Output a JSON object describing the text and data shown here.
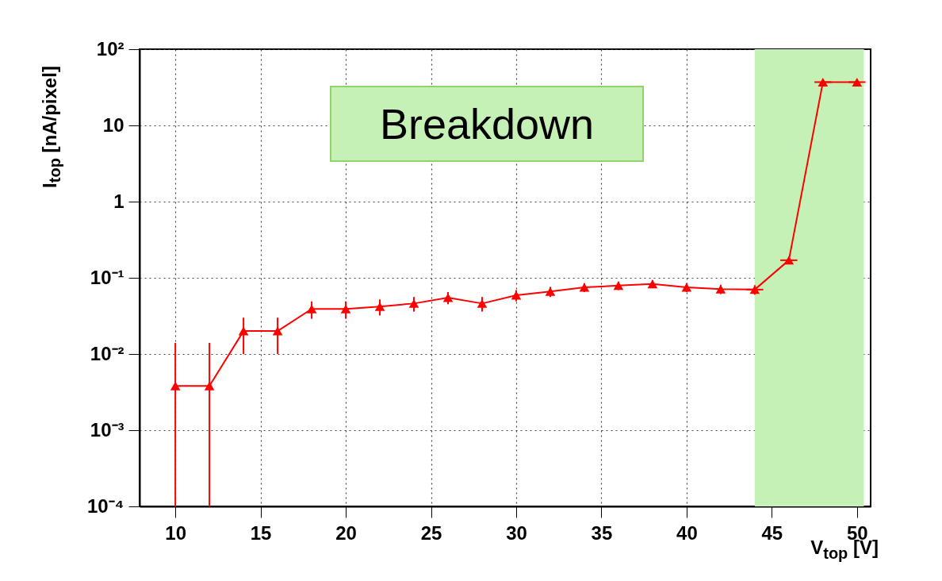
{
  "chart_data": {
    "type": "line",
    "xlabel": "V$_{top}$ [V]",
    "ylabel": "I$_{top}$ [nA/pixel]",
    "log": "y",
    "x": [
      10,
      12,
      14,
      16,
      18,
      20,
      22,
      24,
      26,
      28,
      30,
      32,
      34,
      36,
      38,
      40,
      42,
      44,
      46,
      48,
      50
    ],
    "series": [
      {
        "color": "#ff0000",
        "values": [
          0.0038,
          0.0038,
          0.02,
          0.02,
          0.039,
          0.039,
          0.042,
          0.046,
          0.055,
          0.046,
          0.059,
          0.066,
          0.075,
          0.079,
          0.083,
          0.075,
          0.071,
          0.07,
          0.17,
          37,
          37
        ],
        "errors": [
          [
            0.0001,
            0.014
          ],
          [
            0.0001,
            0.014
          ],
          0.01,
          0.01,
          0.01,
          0.01,
          0.01,
          0.01,
          0.01,
          0.01,
          0.01,
          0.01,
          0.01,
          0.01,
          0.01,
          0.01,
          0.01,
          0.01,
          0.01,
          null,
          null
        ],
        "xerrors": [
          null,
          null,
          null,
          null,
          null,
          null,
          null,
          null,
          null,
          null,
          null,
          null,
          null,
          null,
          null,
          null,
          null,
          0.5,
          0.5,
          0.5,
          0.5
        ]
      }
    ],
    "marker": "triangle",
    "line_style": "solid",
    "grid": true,
    "xlim": [
      7.9,
      50.8
    ],
    "xticks": [
      10,
      15,
      20,
      25,
      30,
      35,
      40,
      45,
      50
    ],
    "ylim": [
      0.0001,
      100
    ],
    "yticks": [
      {
        "value": 0.0001,
        "label": "10⁻⁴"
      },
      {
        "value": 0.001,
        "label": "10⁻³"
      },
      {
        "value": 0.01,
        "label": "10⁻²"
      },
      {
        "value": 0.1,
        "label": "10⁻¹"
      },
      1,
      10,
      {
        "value": 100,
        "label": "10²"
      }
    ],
    "bands": [
      {
        "axis": "x",
        "from": 44,
        "to": 50.4,
        "color": "#c6f1b6"
      }
    ],
    "annotations": [
      "Breakdown"
    ]
  }
}
